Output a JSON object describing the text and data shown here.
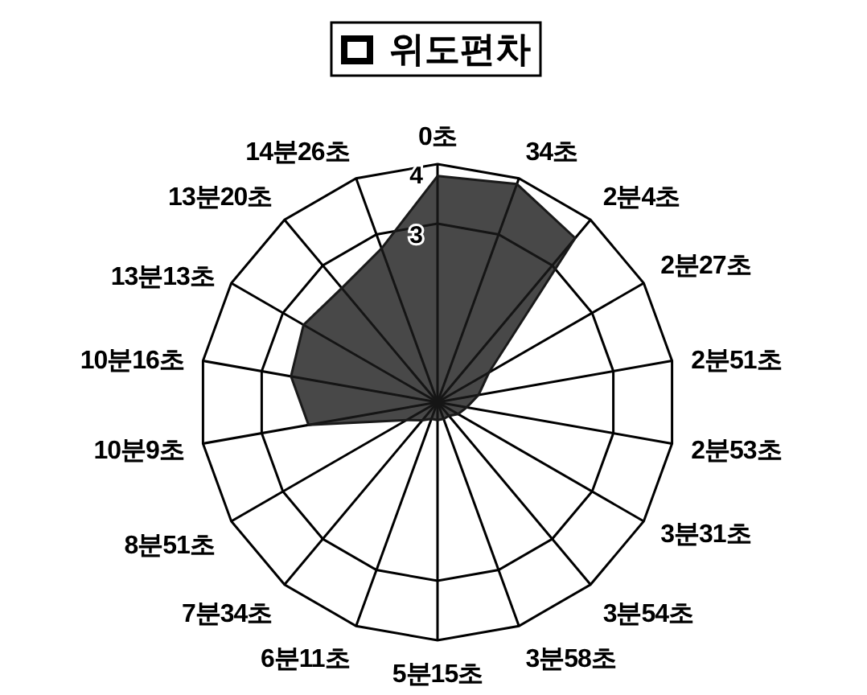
{
  "chart_data": {
    "type": "radar",
    "title": "위도편차",
    "categories": [
      "0초",
      "34초",
      "2분4초",
      "2분27초",
      "2분51초",
      "2분53초",
      "3분31초",
      "3분54초",
      "3분58초",
      "5분15초",
      "6분11초",
      "7분34초",
      "8분51초",
      "10분9초",
      "10분16초",
      "13분13초",
      "13분20초",
      "14분26초"
    ],
    "series": [
      {
        "color": "#1a1a1a",
        "values": [
          3.8,
          3.9,
          3.6,
          1.0,
          0.7,
          0.5,
          0.4,
          0.3,
          0.3,
          0.3,
          0.3,
          0.4,
          0.6,
          2.2,
          2.5,
          2.6,
          2.5,
          2.75
        ]
      }
    ],
    "ylim": [
      0,
      4
    ],
    "yticks": [
      3,
      4
    ],
    "grid": true
  }
}
